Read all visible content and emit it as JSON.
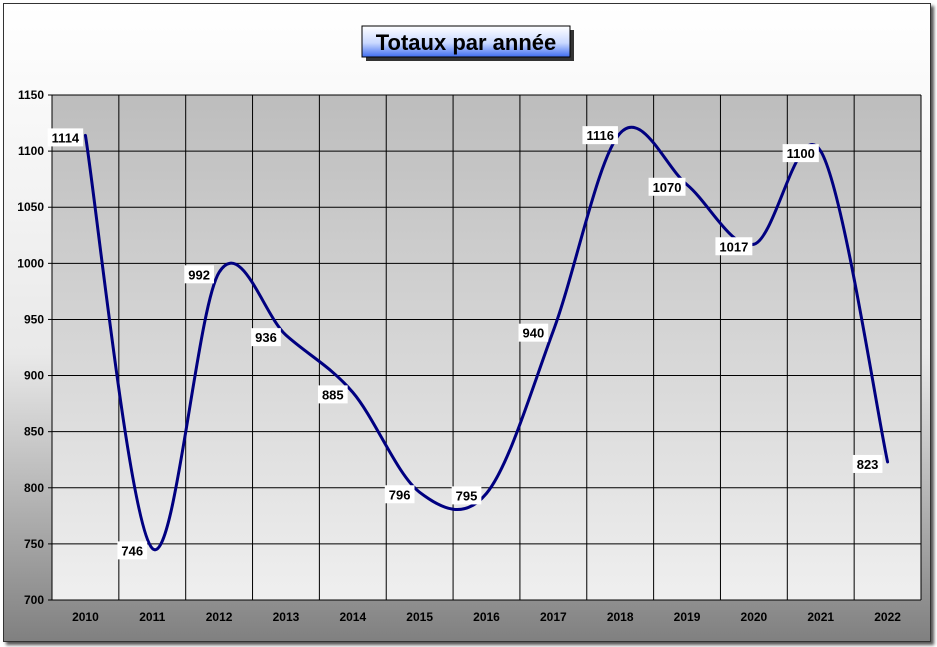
{
  "chart_data": {
    "type": "line",
    "title": "Totaux par année",
    "xlabel": "",
    "ylabel": "",
    "categories": [
      "2010",
      "2011",
      "2012",
      "2013",
      "2014",
      "2015",
      "2016",
      "2017",
      "2018",
      "2019",
      "2020",
      "2021",
      "2022"
    ],
    "values": [
      1114,
      746,
      992,
      936,
      885,
      796,
      795,
      940,
      1116,
      1070,
      1017,
      1100,
      823
    ],
    "ylim": [
      700,
      1150
    ],
    "yticks": [
      700,
      750,
      800,
      850,
      900,
      950,
      1000,
      1050,
      1100,
      1150
    ],
    "smooth": true,
    "grid": true,
    "colors": {
      "line": "#000080",
      "plot_top": "#bdbdbd",
      "plot_bottom": "#efefef"
    }
  }
}
